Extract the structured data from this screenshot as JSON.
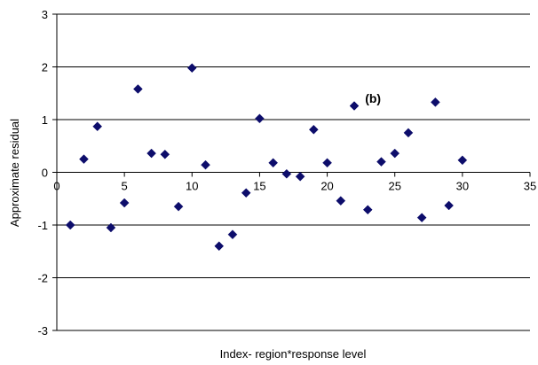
{
  "chart_data": {
    "type": "scatter",
    "title": "",
    "xlabel": "Index- region*response level",
    "ylabel": "Approximate residual",
    "xlim": [
      0,
      35
    ],
    "ylim": [
      -3,
      3
    ],
    "x_ticks": [
      0,
      5,
      10,
      15,
      20,
      25,
      30,
      35
    ],
    "y_ticks": [
      -3,
      -2,
      -1,
      0,
      1,
      2,
      3
    ],
    "grid": "horizontal",
    "legend": "none",
    "marker": "diamond",
    "marker_color": "#0d0d6b",
    "annotation": {
      "text": "(b)",
      "x": 22.8,
      "y": 1.4
    },
    "points": [
      {
        "x": 1,
        "y": -1.0
      },
      {
        "x": 2,
        "y": 0.25
      },
      {
        "x": 3,
        "y": 0.87
      },
      {
        "x": 4,
        "y": -1.05
      },
      {
        "x": 5,
        "y": -0.58
      },
      {
        "x": 6,
        "y": 1.58
      },
      {
        "x": 7,
        "y": 0.36
      },
      {
        "x": 8,
        "y": 0.34
      },
      {
        "x": 9,
        "y": -0.65
      },
      {
        "x": 10,
        "y": 1.98
      },
      {
        "x": 11,
        "y": 0.14
      },
      {
        "x": 12,
        "y": -1.4
      },
      {
        "x": 13,
        "y": -1.18
      },
      {
        "x": 14,
        "y": -0.39
      },
      {
        "x": 15,
        "y": 1.02
      },
      {
        "x": 16,
        "y": 0.18
      },
      {
        "x": 17,
        "y": -0.03
      },
      {
        "x": 18,
        "y": -0.08
      },
      {
        "x": 19,
        "y": 0.81
      },
      {
        "x": 20,
        "y": 0.18
      },
      {
        "x": 21,
        "y": -0.54
      },
      {
        "x": 22,
        "y": 1.26
      },
      {
        "x": 23,
        "y": -0.71
      },
      {
        "x": 24,
        "y": 0.2
      },
      {
        "x": 25,
        "y": 0.36
      },
      {
        "x": 26,
        "y": 0.75
      },
      {
        "x": 27,
        "y": -0.86
      },
      {
        "x": 28,
        "y": 1.33
      },
      {
        "x": 29,
        "y": -0.63
      },
      {
        "x": 30,
        "y": 0.23
      }
    ]
  }
}
